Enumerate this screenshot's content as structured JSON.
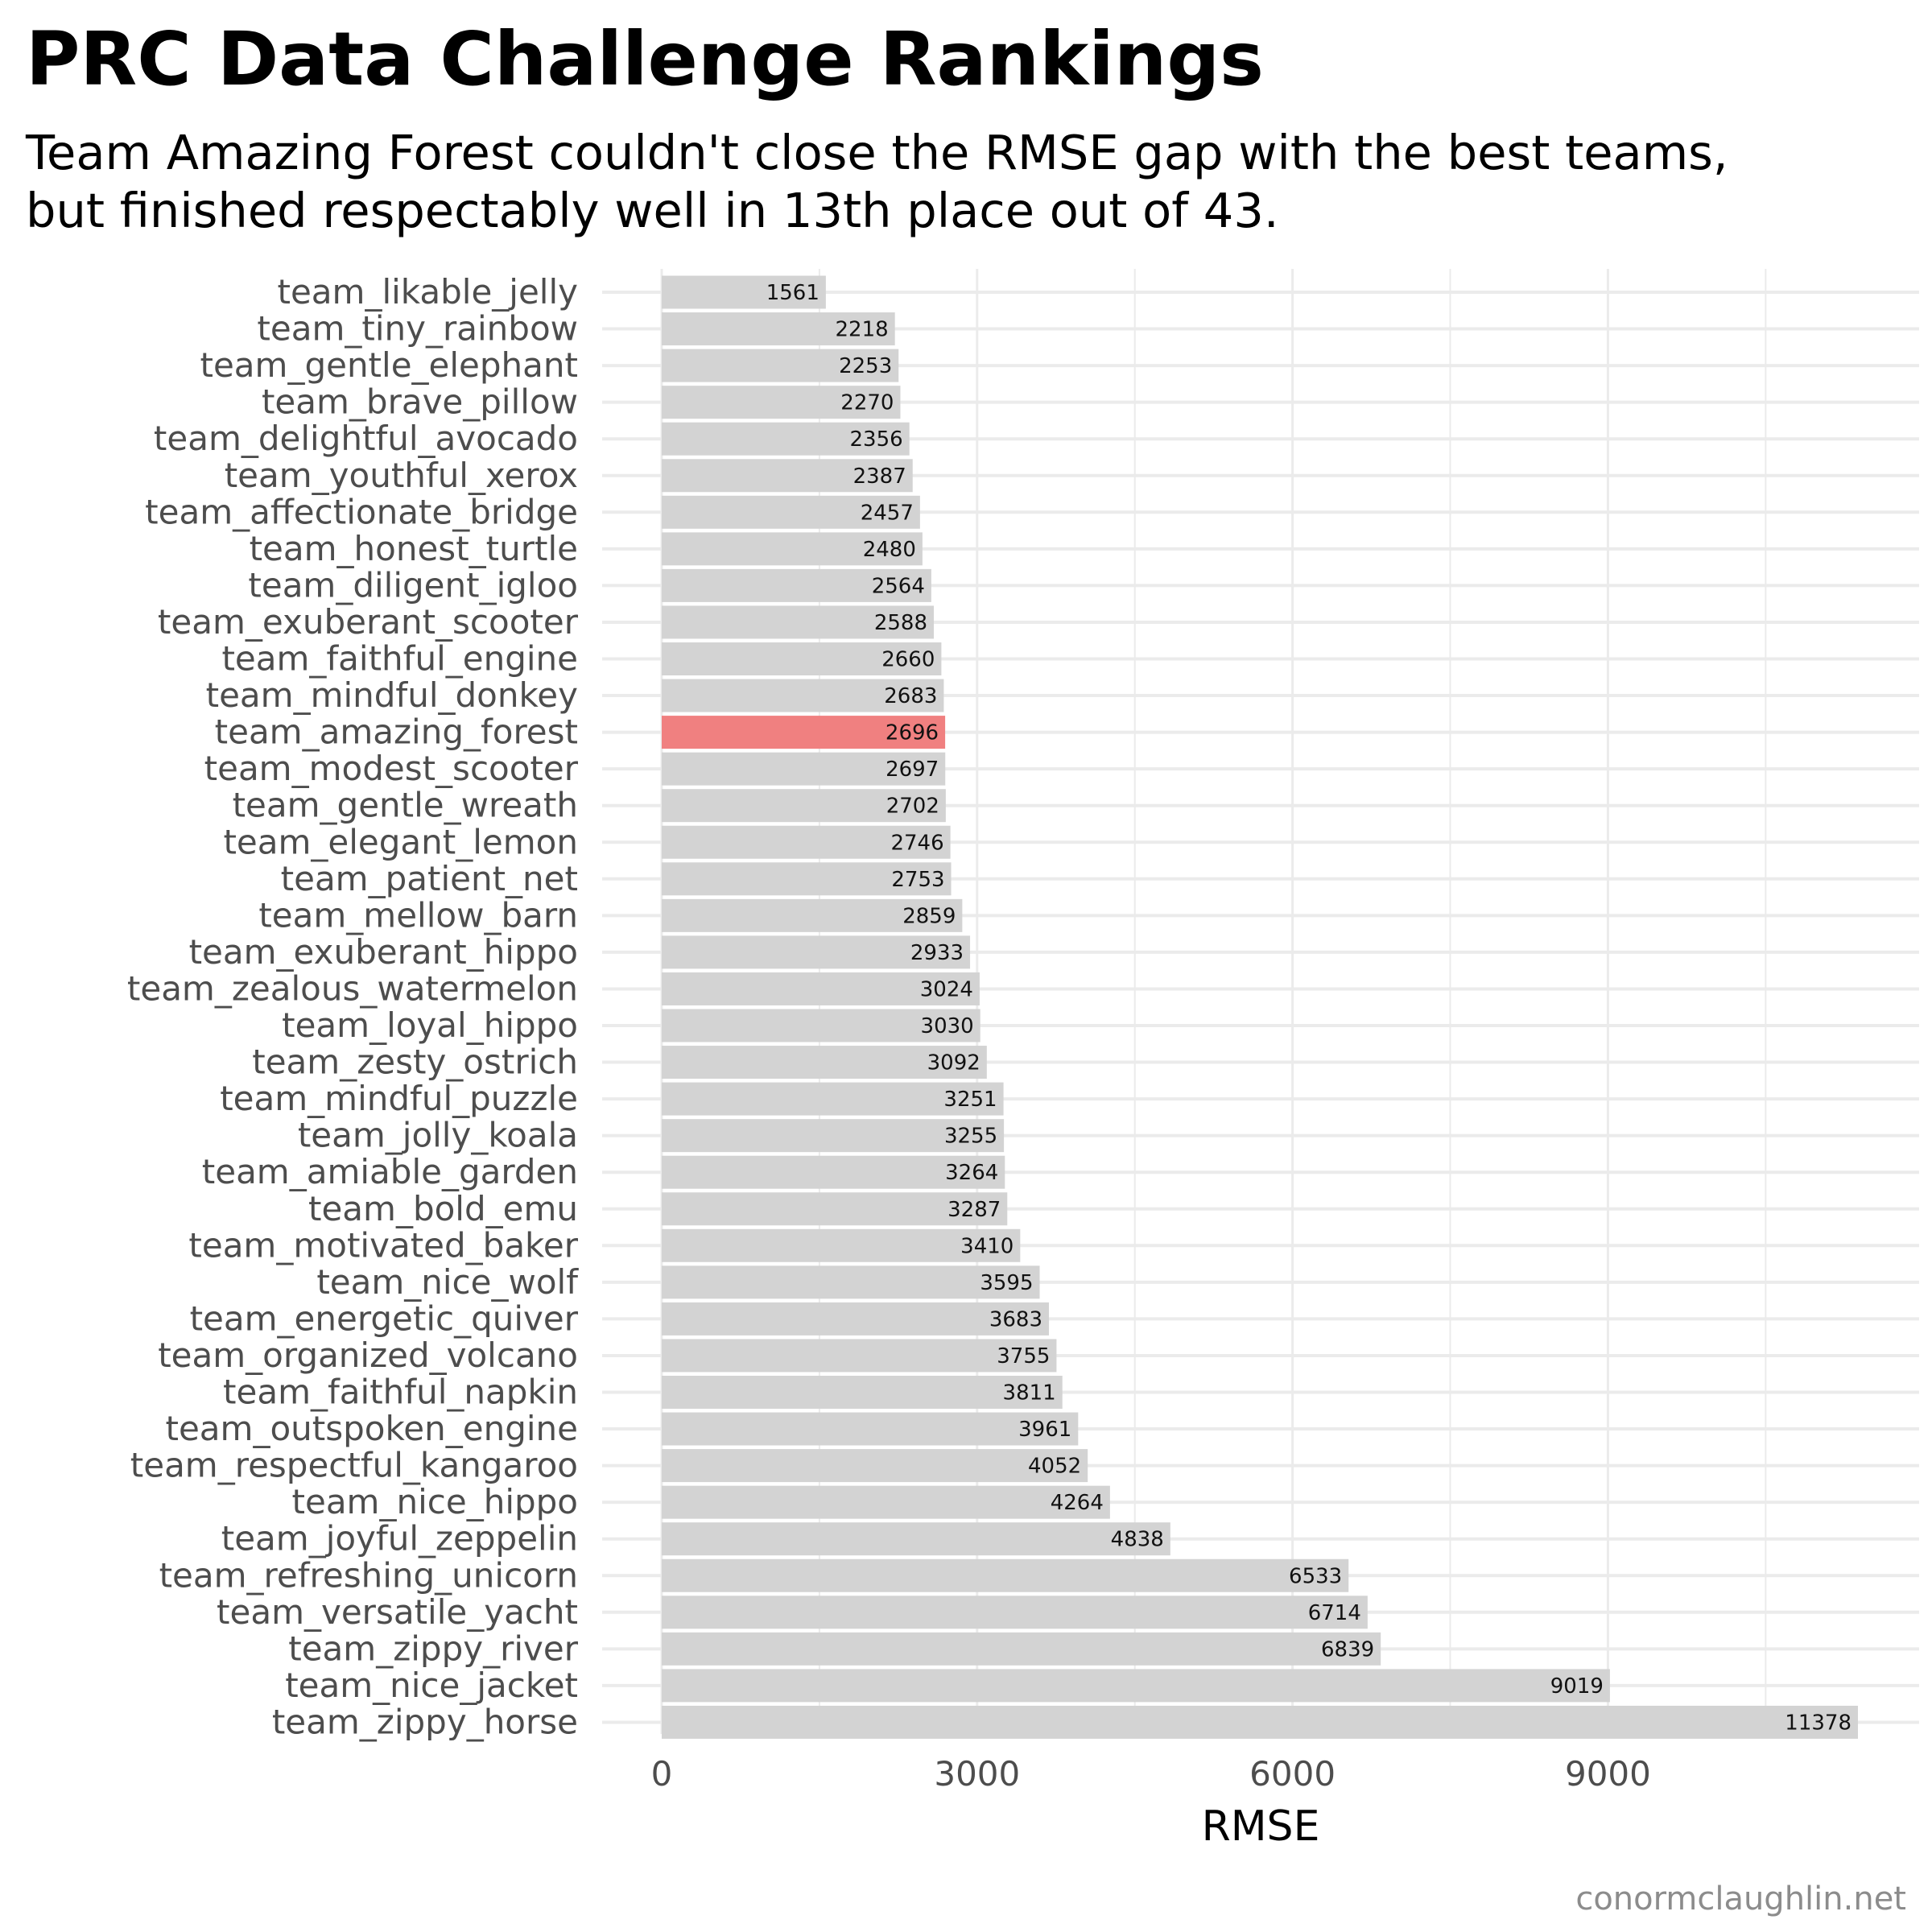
{
  "title": "PRC Data Challenge Rankings",
  "subtitle_lines": [
    "Team Amazing Forest couldn't close the RMSE gap with the best teams,",
    "but finished respectably well in 13th place out of 43."
  ],
  "caption": "conormclaughlin.net",
  "colors": {
    "bar": "#d3d3d3",
    "highlight": "#f08080",
    "grid": "#ebebeb",
    "background": "#ffffff"
  },
  "chart_data": {
    "type": "bar",
    "orientation": "horizontal",
    "xlabel": "RMSE",
    "ylabel": "",
    "xlim": [
      0,
      11500
    ],
    "xticks": [
      0,
      3000,
      6000,
      9000
    ],
    "grid": true,
    "highlight": "team_amazing_forest",
    "categories": [
      "team_likable_jelly",
      "team_tiny_rainbow",
      "team_gentle_elephant",
      "team_brave_pillow",
      "team_delightful_avocado",
      "team_youthful_xerox",
      "team_affectionate_bridge",
      "team_honest_turtle",
      "team_diligent_igloo",
      "team_exuberant_scooter",
      "team_faithful_engine",
      "team_mindful_donkey",
      "team_amazing_forest",
      "team_modest_scooter",
      "team_gentle_wreath",
      "team_elegant_lemon",
      "team_patient_net",
      "team_mellow_barn",
      "team_exuberant_hippo",
      "team_zealous_watermelon",
      "team_loyal_hippo",
      "team_zesty_ostrich",
      "team_mindful_puzzle",
      "team_jolly_koala",
      "team_amiable_garden",
      "team_bold_emu",
      "team_motivated_baker",
      "team_nice_wolf",
      "team_energetic_quiver",
      "team_organized_volcano",
      "team_faithful_napkin",
      "team_outspoken_engine",
      "team_respectful_kangaroo",
      "team_nice_hippo",
      "team_joyful_zeppelin",
      "team_refreshing_unicorn",
      "team_versatile_yacht",
      "team_zippy_river",
      "team_nice_jacket",
      "team_zippy_horse"
    ],
    "values": [
      1561,
      2218,
      2253,
      2270,
      2356,
      2387,
      2457,
      2480,
      2564,
      2588,
      2660,
      2683,
      2696,
      2697,
      2702,
      2746,
      2753,
      2859,
      2933,
      3024,
      3030,
      3092,
      3251,
      3255,
      3264,
      3287,
      3410,
      3595,
      3683,
      3755,
      3811,
      3961,
      4052,
      4264,
      4838,
      6533,
      6714,
      6839,
      9019,
      11378
    ]
  }
}
